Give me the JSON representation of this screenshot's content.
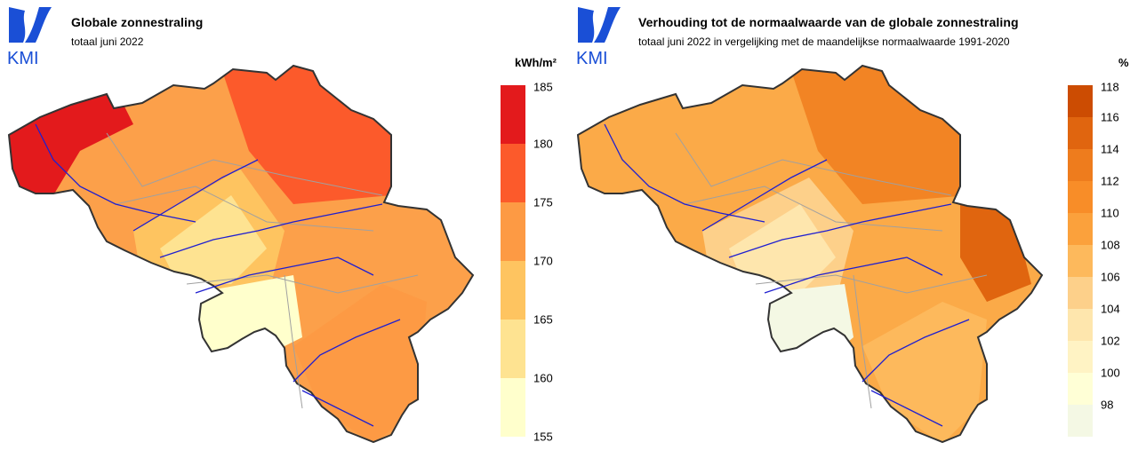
{
  "maps": [
    {
      "id": "left",
      "title": "Globale zonnestraling",
      "subtitle": "totaal juni 2022",
      "unit": "kWh/m²",
      "legend_ticks": [
        "185",
        "180",
        "175",
        "170",
        "165",
        "160",
        "155"
      ],
      "legend_colors": [
        "#e31a1c",
        "#fc5a2b",
        "#fd9a44",
        "#fec460",
        "#fee391",
        "#ffffcc"
      ],
      "fill_base": "#fca04a",
      "fill_zones": [
        "#fc5a2b",
        "#e31a1c",
        "#fec460",
        "#fee391",
        "#ffffcc",
        "#fd9a44"
      ]
    },
    {
      "id": "right",
      "title": "Verhouding tot de normaalwaarde van de globale zonnestraling",
      "subtitle": "totaal juni 2022 in vergelijking met de maandelijkse normaalwaarde 1991-2020",
      "unit": "%",
      "legend_ticks": [
        "118",
        "116",
        "114",
        "112",
        "110",
        "108",
        "106",
        "104",
        "102",
        "100",
        "98"
      ],
      "legend_colors": [
        "#cc4c02",
        "#e0650f",
        "#ee7c1d",
        "#f88d28",
        "#fba13c",
        "#fdb95c",
        "#fdd08a",
        "#fee6ad",
        "#fff3c4",
        "#ffffd6",
        "#f4f8e4"
      ],
      "fill_base": "#fbaa48",
      "fill_zones": [
        "#f28424",
        "#e0650f",
        "#fdd08a",
        "#fee6ad",
        "#f4f8e4",
        "#fdb95c"
      ]
    }
  ],
  "logo": {
    "text": "KMI",
    "color": "#1a4fd6",
    "icon": "kmi-logo-icon"
  },
  "colors": {
    "border": "#333333",
    "rivers": "#1f1fd0",
    "provinces": "#a0a0a0"
  }
}
